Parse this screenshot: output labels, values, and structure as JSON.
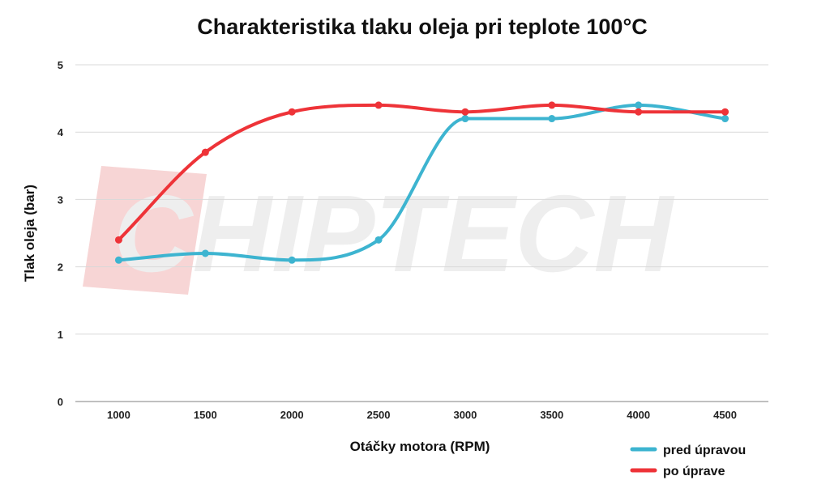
{
  "chart_data": {
    "type": "line",
    "title": "Charakteristika tlaku oleja pri teplote 100°C",
    "xlabel": "Otáčky motora (RPM)",
    "ylabel": "Tlak oleja (bar)",
    "x": [
      1000,
      1500,
      2000,
      2500,
      3000,
      3500,
      4000,
      4500
    ],
    "ylim": [
      0,
      5
    ],
    "yticks": [
      0,
      1,
      2,
      3,
      4,
      5
    ],
    "grid": true,
    "legend_position": "bottom-right",
    "series": [
      {
        "name": "pred úpravou",
        "color": "#3db4d0",
        "values": [
          2.1,
          2.2,
          2.1,
          2.4,
          4.2,
          4.2,
          4.4,
          4.2
        ]
      },
      {
        "name": "po úprave",
        "color": "#ee3338",
        "values": [
          2.4,
          3.7,
          4.3,
          4.4,
          4.3,
          4.4,
          4.3,
          4.3
        ]
      }
    ]
  },
  "watermark": {
    "text": "CHIPTECH",
    "accent_color": "#f7d5d5"
  }
}
